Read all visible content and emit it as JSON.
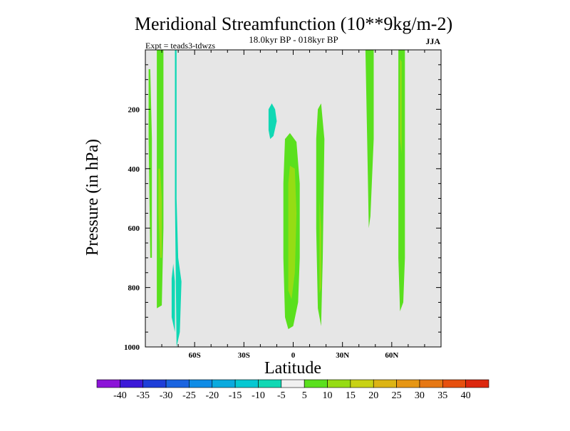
{
  "chart_data": {
    "type": "contour",
    "title": "Meridional Streamfunction (10**9kg/m-2)",
    "subtitle": "18.0kyr BP - 018kyr BP",
    "experiment": "Expt = teads3-tdwzs",
    "season": "JJA",
    "xlabel": "Latitude",
    "ylabel": "Pressure (in hPa)",
    "xlim": [
      -90,
      90
    ],
    "ylim": [
      1000,
      0
    ],
    "background_color": "#e6e6e6",
    "x_ticks": [
      {
        "value": -60,
        "label": "60S"
      },
      {
        "value": -30,
        "label": "30S"
      },
      {
        "value": 0,
        "label": "0"
      },
      {
        "value": 30,
        "label": "30N"
      },
      {
        "value": 60,
        "label": "60N"
      }
    ],
    "y_ticks": [
      {
        "value": 200,
        "label": "200"
      },
      {
        "value": 400,
        "label": "400"
      },
      {
        "value": 600,
        "label": "600"
      },
      {
        "value": 800,
        "label": "800"
      },
      {
        "value": 1000,
        "label": "1000"
      }
    ],
    "colorbar": {
      "labels": [
        "-40",
        "-35",
        "-30",
        "-25",
        "-20",
        "-15",
        "-10",
        "-5",
        "5",
        "10",
        "15",
        "20",
        "25",
        "30",
        "35",
        "40"
      ],
      "colors": [
        "#8c14d8",
        "#3c19d8",
        "#1e3ed8",
        "#1a64e0",
        "#0f8ce6",
        "#0aaade",
        "#05c8d2",
        "#10d8b4",
        "#f0f0f0",
        "#5ae01e",
        "#96dc14",
        "#c8d214",
        "#dcb414",
        "#e69614",
        "#e67814",
        "#e6500f",
        "#dc280f"
      ]
    },
    "regions": [
      {
        "level": 5,
        "color": "#5ae01e",
        "points": [
          [
            -88,
            65
          ],
          [
            -88,
            300
          ],
          [
            -87,
            700
          ],
          [
            -86,
            700
          ],
          [
            -86,
            300
          ],
          [
            -87,
            65
          ]
        ]
      },
      {
        "level": 5,
        "color": "#5ae01e",
        "points": [
          [
            -83,
            0
          ],
          [
            -83,
            300
          ],
          [
            -83,
            600
          ],
          [
            -83,
            870
          ],
          [
            -80,
            860
          ],
          [
            -79,
            600
          ],
          [
            -79,
            300
          ],
          [
            -79,
            0
          ]
        ]
      },
      {
        "level": 10,
        "color": "#96dc14",
        "points": [
          [
            -82,
            400
          ],
          [
            -82,
            550
          ],
          [
            -81,
            700
          ],
          [
            -80,
            700
          ],
          [
            -80,
            500
          ],
          [
            -81,
            400
          ]
        ]
      },
      {
        "level": -5,
        "color": "#10d8b4",
        "points": [
          [
            -72,
            0
          ],
          [
            -72,
            500
          ],
          [
            -71,
            1000
          ],
          [
            -69,
            950
          ],
          [
            -68,
            780
          ],
          [
            -70,
            700
          ],
          [
            -71,
            500
          ],
          [
            -71,
            0
          ]
        ]
      },
      {
        "level": -5,
        "color": "#10d8b4",
        "points": [
          [
            -74,
            770
          ],
          [
            -73,
            720
          ],
          [
            -72,
            780
          ],
          [
            -72,
            950
          ],
          [
            -74,
            900
          ]
        ]
      },
      {
        "level": -5,
        "color": "#10d8b4",
        "points": [
          [
            -15,
            200
          ],
          [
            -13,
            180
          ],
          [
            -11,
            200
          ],
          [
            -10,
            240
          ],
          [
            -12,
            290
          ],
          [
            -14,
            300
          ],
          [
            -15,
            270
          ]
        ]
      },
      {
        "level": 5,
        "color": "#5ae01e",
        "points": [
          [
            -5,
            300
          ],
          [
            -2,
            280
          ],
          [
            2,
            310
          ],
          [
            4,
            450
          ],
          [
            4,
            700
          ],
          [
            3,
            850
          ],
          [
            0,
            930
          ],
          [
            -3,
            940
          ],
          [
            -5,
            900
          ],
          [
            -6,
            700
          ],
          [
            -6,
            450
          ]
        ]
      },
      {
        "level": 10,
        "color": "#96dc14",
        "points": [
          [
            -2,
            390
          ],
          [
            1,
            400
          ],
          [
            2,
            550
          ],
          [
            1,
            750
          ],
          [
            -1,
            840
          ],
          [
            -3,
            810
          ],
          [
            -3,
            600
          ],
          [
            -3,
            450
          ]
        ]
      },
      {
        "level": 5,
        "color": "#5ae01e",
        "points": [
          [
            15,
            200
          ],
          [
            17,
            180
          ],
          [
            19,
            300
          ],
          [
            18,
            700
          ],
          [
            17,
            930
          ],
          [
            15,
            870
          ],
          [
            14,
            600
          ],
          [
            14,
            300
          ]
        ]
      },
      {
        "level": 10,
        "color": "#96dc14",
        "points": [
          [
            16,
            500
          ],
          [
            17,
            600
          ],
          [
            17,
            800
          ],
          [
            16,
            820
          ],
          [
            16,
            650
          ]
        ]
      },
      {
        "level": 5,
        "color": "#5ae01e",
        "points": [
          [
            44,
            0
          ],
          [
            45,
            300
          ],
          [
            46,
            600
          ],
          [
            47,
            560
          ],
          [
            49,
            300
          ],
          [
            49,
            0
          ]
        ]
      },
      {
        "level": 5,
        "color": "#5ae01e",
        "points": [
          [
            64,
            0
          ],
          [
            64,
            300
          ],
          [
            64,
            700
          ],
          [
            65,
            880
          ],
          [
            67,
            850
          ],
          [
            68,
            700
          ],
          [
            68,
            300
          ],
          [
            68,
            0
          ]
        ]
      },
      {
        "level": 10,
        "color": "#96dc14",
        "points": [
          [
            65,
            30
          ],
          [
            65,
            300
          ],
          [
            66,
            350
          ],
          [
            66,
            40
          ]
        ]
      }
    ]
  }
}
